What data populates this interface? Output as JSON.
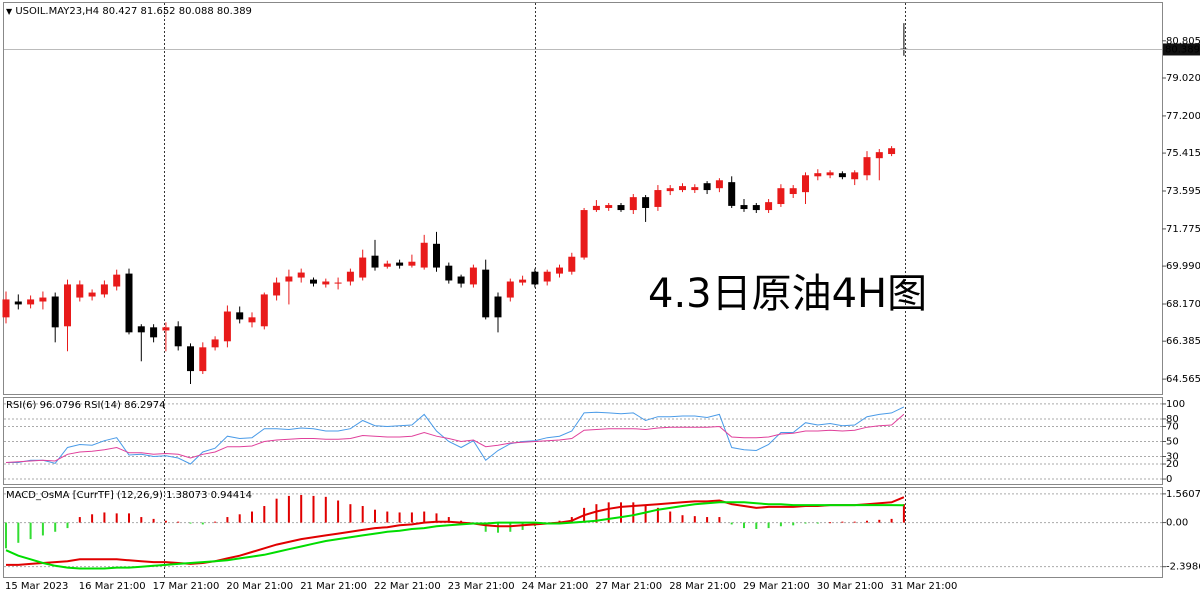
{
  "chart_data": [
    {
      "type": "candlestick",
      "symbol": "USOIL.MAY23,H4",
      "categories": [
        "15 Mar 2023",
        null,
        null,
        null,
        null,
        null,
        "16 Mar 21:00",
        null,
        null,
        null,
        null,
        null,
        "17 Mar 21:00",
        null,
        null,
        null,
        null,
        null,
        "20 Mar 21:00",
        null,
        null,
        null,
        null,
        null,
        "21 Mar 21:00",
        null,
        null,
        null,
        null,
        null,
        "22 Mar 21:00",
        null,
        null,
        null,
        null,
        null,
        "23 Mar 21:00",
        null,
        null,
        null,
        null,
        null,
        "24 Mar 21:00",
        null,
        null,
        null,
        null,
        null,
        "27 Mar 21:00",
        null,
        null,
        null,
        null,
        null,
        "28 Mar 21:00",
        null,
        null,
        null,
        null,
        null,
        "29 Mar 21:00",
        null,
        null,
        null,
        null,
        null,
        "30 Mar 21:00",
        null,
        null,
        null,
        null,
        null,
        "31 Mar 21:00",
        null
      ],
      "open": [
        67.53,
        68.29,
        68.15,
        68.29,
        68.53,
        67.1,
        68.48,
        68.53,
        68.63,
        69.01,
        69.63,
        67.1,
        67.05,
        66.9,
        67.1,
        66.14,
        64.95,
        66.09,
        66.38,
        67.77,
        67.29,
        67.1,
        68.58,
        69.25,
        69.44,
        69.34,
        69.11,
        69.15,
        69.25,
        69.44,
        70.49,
        69.96,
        70.16,
        70.01,
        69.92,
        71.06,
        70.01,
        69.49,
        69.11,
        69.82,
        68.53,
        68.48,
        69.2,
        69.72,
        69.25,
        69.63,
        69.72,
        70.4,
        72.68,
        72.78,
        72.92,
        72.68,
        73.3,
        72.83,
        73.59,
        73.64,
        73.64,
        73.97,
        73.73,
        74.02,
        72.92,
        72.92,
        72.68,
        72.97,
        73.45,
        73.54,
        74.3,
        74.35,
        74.45,
        74.16,
        74.35,
        75.17,
        75.37,
        80.427
      ],
      "high": [
        68.77,
        68.63,
        68.58,
        68.77,
        68.72,
        69.34,
        69.3,
        68.87,
        69.3,
        69.82,
        69.87,
        67.2,
        67.2,
        67.29,
        67.34,
        66.28,
        66.33,
        66.62,
        68.1,
        68.05,
        67.77,
        68.72,
        69.44,
        69.82,
        69.87,
        69.44,
        69.39,
        69.44,
        69.87,
        70.78,
        71.25,
        70.25,
        70.3,
        70.54,
        71.49,
        71.63,
        70.16,
        69.58,
        70.06,
        70.3,
        68.72,
        69.39,
        69.53,
        69.87,
        69.82,
        70.06,
        70.63,
        72.78,
        73.16,
        73.02,
        73.02,
        73.45,
        73.4,
        73.88,
        73.88,
        73.97,
        73.92,
        74.07,
        74.21,
        74.3,
        73.21,
        73.02,
        73.21,
        73.92,
        73.88,
        74.49,
        74.64,
        74.59,
        74.54,
        74.59,
        75.51,
        75.61,
        75.75,
        81.652
      ],
      "low": [
        67.24,
        67.91,
        67.96,
        67.91,
        66.33,
        65.9,
        68.29,
        68.34,
        68.48,
        68.82,
        66.71,
        65.42,
        66.33,
        65.9,
        65.94,
        64.33,
        64.81,
        65.94,
        66.09,
        67.24,
        67.05,
        66.95,
        68.34,
        68.15,
        69.2,
        69.01,
        68.96,
        68.87,
        69.06,
        69.3,
        69.77,
        69.87,
        69.87,
        69.92,
        69.82,
        69.72,
        69.15,
        68.96,
        68.96,
        67.43,
        66.81,
        68.29,
        69.06,
        68.96,
        69.06,
        69.44,
        69.58,
        70.3,
        72.59,
        72.64,
        72.59,
        72.49,
        72.11,
        72.64,
        73.4,
        73.54,
        73.5,
        73.45,
        73.54,
        72.78,
        72.59,
        72.54,
        72.54,
        72.83,
        73.26,
        72.97,
        74.11,
        74.21,
        74.16,
        73.88,
        74.11,
        74.11,
        75.27,
        80.088
      ],
      "close": [
        68.39,
        68.15,
        68.39,
        68.48,
        67.05,
        69.11,
        69.11,
        68.72,
        69.11,
        69.58,
        66.81,
        66.81,
        66.57,
        67.05,
        66.14,
        64.95,
        66.09,
        66.47,
        67.81,
        67.43,
        67.53,
        68.63,
        69.2,
        69.49,
        69.68,
        69.15,
        69.25,
        69.2,
        69.72,
        70.4,
        69.92,
        70.11,
        70.01,
        70.2,
        71.11,
        69.92,
        69.3,
        69.15,
        69.92,
        67.53,
        67.53,
        69.25,
        69.34,
        69.11,
        69.72,
        69.92,
        70.44,
        72.68,
        72.88,
        72.92,
        72.68,
        73.3,
        72.78,
        73.64,
        73.73,
        73.83,
        73.78,
        73.64,
        74.11,
        72.88,
        72.73,
        72.68,
        73.06,
        73.73,
        73.73,
        74.35,
        74.45,
        74.49,
        74.26,
        74.49,
        75.22,
        75.46,
        75.65,
        80.389
      ],
      "up_color": "#e81a1a",
      "down_color": "#000000",
      "ylim": [
        63.85,
        82.62
      ],
      "yticks": [
        80.805,
        {
          "value": 79.02,
          "label": "79.020"
        },
        {
          "value": 77.2,
          "label": "77.200"
        },
        75.415,
        73.595,
        71.775,
        {
          "value": 69.99,
          "label": "69.990"
        },
        {
          "value": 68.17,
          "label": "68.170"
        },
        66.385,
        64.565
      ],
      "grid": false,
      "annotation": "4.3日原油4H图",
      "annotation_color": "#e8141e"
    },
    {
      "type": "line",
      "series": [
        {
          "name": "RSI(6)",
          "color": "#4a9be8",
          "values": [
            22,
            22,
            25,
            25,
            21,
            42,
            46,
            45,
            51,
            55,
            32,
            33,
            30,
            31,
            28,
            20,
            36,
            41,
            57,
            54,
            55,
            67,
            67,
            66,
            68,
            67,
            64,
            64,
            67,
            78,
            71,
            70,
            71,
            72,
            86,
            64,
            50,
            42,
            51,
            25,
            38,
            47,
            50,
            51,
            55,
            57,
            64,
            88,
            89,
            88,
            87,
            88,
            78,
            83,
            83,
            84,
            84,
            82,
            86,
            42,
            39,
            38,
            46,
            62,
            62,
            75,
            72,
            74,
            71,
            72,
            83,
            86,
            88,
            96.0796
          ]
        },
        {
          "name": "RSI(14)",
          "color": "#e0409b",
          "values": [
            22,
            23,
            24,
            25,
            24,
            33,
            36,
            37,
            39,
            42,
            35,
            35,
            33,
            34,
            33,
            28,
            33,
            36,
            43,
            43,
            44,
            50,
            52,
            53,
            54,
            54,
            53,
            53,
            54,
            58,
            57,
            56,
            56,
            57,
            62,
            57,
            54,
            50,
            52,
            43,
            45,
            48,
            49,
            50,
            51,
            52,
            54,
            65,
            66,
            67,
            67,
            67,
            66,
            68,
            69,
            69,
            69,
            69,
            70,
            56,
            55,
            55,
            56,
            60,
            61,
            64,
            64,
            65,
            64,
            65,
            69,
            71,
            72,
            86.2974
          ]
        }
      ],
      "ylim": [
        -6.6,
        107.9
      ],
      "yticks": [
        100,
        80,
        70,
        50,
        30,
        20,
        0
      ],
      "grid": true
    },
    {
      "type": "macd",
      "title": "MACD_OsMA [CurrTF] (12,26,9)",
      "histogram": {
        "up_color": "#e00000",
        "down_color": "#33dd33",
        "values": [
          -1.4,
          -1.1,
          -0.9,
          -0.7,
          -0.5,
          -0.3,
          0.3,
          0.45,
          0.55,
          0.5,
          0.5,
          0.3,
          0.2,
          0.1,
          0.05,
          -0.05,
          -0.1,
          0.05,
          0.3,
          0.45,
          0.6,
          0.9,
          1.3,
          1.45,
          1.5,
          1.45,
          1.4,
          1.2,
          1.0,
          0.9,
          0.7,
          0.6,
          0.55,
          0.55,
          0.6,
          0.5,
          0.3,
          0.1,
          -0.1,
          -0.5,
          -0.55,
          -0.5,
          -0.4,
          -0.2,
          -0.1,
          0.1,
          0.3,
          0.8,
          1.0,
          1.1,
          1.1,
          1.1,
          0.9,
          0.8,
          0.6,
          0.4,
          0.35,
          0.3,
          0.3,
          -0.1,
          -0.3,
          -0.35,
          -0.3,
          -0.2,
          -0.15,
          -0.05,
          -0.05,
          0.02,
          0.05,
          0.05,
          0.1,
          0.15,
          0.2,
          1.0
        ]
      },
      "series": [
        {
          "color": "#e00000",
          "values": [
            -2.3,
            -2.3,
            -2.25,
            -2.2,
            -2.15,
            -2.1,
            -2.0,
            -2.0,
            -2.0,
            -2.0,
            -2.05,
            -2.1,
            -2.15,
            -2.15,
            -2.2,
            -2.25,
            -2.2,
            -2.1,
            -1.95,
            -1.8,
            -1.6,
            -1.4,
            -1.2,
            -1.05,
            -0.9,
            -0.8,
            -0.7,
            -0.6,
            -0.5,
            -0.4,
            -0.3,
            -0.25,
            -0.15,
            -0.1,
            0.0,
            0.05,
            0.05,
            0.0,
            -0.05,
            -0.15,
            -0.2,
            -0.2,
            -0.15,
            -0.1,
            -0.05,
            0.0,
            0.1,
            0.4,
            0.6,
            0.75,
            0.85,
            0.9,
            0.95,
            1.0,
            1.05,
            1.1,
            1.15,
            1.15,
            1.2,
            1.0,
            0.9,
            0.8,
            0.85,
            0.85,
            0.85,
            0.9,
            0.9,
            0.95,
            0.95,
            0.95,
            1.0,
            1.05,
            1.1,
            1.38073
          ]
        },
        {
          "color": "#00dd00",
          "values": [
            -1.5,
            -1.8,
            -2.0,
            -2.2,
            -2.35,
            -2.45,
            -2.5,
            -2.5,
            -2.5,
            -2.45,
            -2.45,
            -2.4,
            -2.35,
            -2.3,
            -2.25,
            -2.2,
            -2.15,
            -2.1,
            -2.05,
            -1.95,
            -1.85,
            -1.75,
            -1.6,
            -1.45,
            -1.3,
            -1.15,
            -1.0,
            -0.9,
            -0.8,
            -0.7,
            -0.6,
            -0.5,
            -0.45,
            -0.35,
            -0.3,
            -0.2,
            -0.15,
            -0.1,
            -0.05,
            -0.05,
            0.0,
            0.0,
            0.0,
            0.0,
            -0.05,
            -0.05,
            0.0,
            0.05,
            0.1,
            0.2,
            0.3,
            0.4,
            0.55,
            0.7,
            0.8,
            0.9,
            1.0,
            1.05,
            1.1,
            1.1,
            1.1,
            1.05,
            1.0,
            1.0,
            0.95,
            0.95,
            0.95,
            0.95,
            0.95,
            0.95,
            0.95,
            0.95,
            0.95,
            0.94414
          ]
        }
      ],
      "ylim": [
        -2.96,
        1.88
      ],
      "yticks": [
        1.5607,
        {
          "value": 0,
          "label": "0.00"
        },
        -2.39867
      ],
      "grid": true
    }
  ]
}
